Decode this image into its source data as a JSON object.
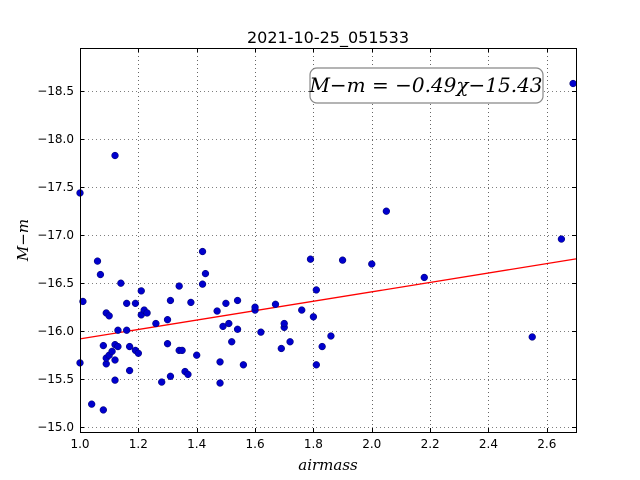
{
  "chart_data": {
    "type": "scatter",
    "title": "2021-10-25_051533",
    "xlabel": "airmass",
    "ylabel": "M−m",
    "xlim": [
      1.0,
      2.7
    ],
    "ylim": [
      -18.95,
      -14.95
    ],
    "y_inverted": true,
    "grid": true,
    "x_ticks": [
      1.0,
      1.2,
      1.4,
      1.6,
      1.8,
      2.0,
      2.2,
      2.4,
      2.6
    ],
    "x_tick_labels": [
      "1.0",
      "1.2",
      "1.4",
      "1.6",
      "1.8",
      "2.0",
      "2.2",
      "2.4",
      "2.6"
    ],
    "y_ticks": [
      -15.0,
      -15.5,
      -16.0,
      -16.5,
      -17.0,
      -17.5,
      -18.0,
      -18.5
    ],
    "y_tick_labels": [
      "−15.0",
      "−15.5",
      "−16.0",
      "−16.5",
      "−17.0",
      "−17.5",
      "−18.0",
      "−18.5"
    ],
    "annotation": "M−m = −0.49χ−15.43",
    "fit": {
      "slope": -0.49,
      "intercept": -15.43,
      "color": "#ff0000"
    },
    "point_color": "#0000cc",
    "points": [
      [
        1.0,
        -15.67
      ],
      [
        1.0,
        -17.44
      ],
      [
        1.01,
        -16.31
      ],
      [
        1.04,
        -15.24
      ],
      [
        1.06,
        -16.73
      ],
      [
        1.07,
        -16.59
      ],
      [
        1.08,
        -15.18
      ],
      [
        1.08,
        -15.85
      ],
      [
        1.09,
        -16.19
      ],
      [
        1.09,
        -15.66
      ],
      [
        1.09,
        -15.72
      ],
      [
        1.1,
        -15.75
      ],
      [
        1.1,
        -16.16
      ],
      [
        1.11,
        -15.79
      ],
      [
        1.12,
        -15.49
      ],
      [
        1.12,
        -15.7
      ],
      [
        1.12,
        -15.86
      ],
      [
        1.12,
        -17.83
      ],
      [
        1.13,
        -15.84
      ],
      [
        1.13,
        -16.01
      ],
      [
        1.14,
        -16.5
      ],
      [
        1.16,
        -16.29
      ],
      [
        1.16,
        -16.01
      ],
      [
        1.17,
        -15.84
      ],
      [
        1.17,
        -15.59
      ],
      [
        1.19,
        -15.8
      ],
      [
        1.19,
        -16.29
      ],
      [
        1.2,
        -15.77
      ],
      [
        1.21,
        -16.17
      ],
      [
        1.21,
        -16.42
      ],
      [
        1.22,
        -16.22
      ],
      [
        1.23,
        -16.19
      ],
      [
        1.26,
        -16.08
      ],
      [
        1.28,
        -15.47
      ],
      [
        1.3,
        -15.87
      ],
      [
        1.3,
        -16.12
      ],
      [
        1.31,
        -15.53
      ],
      [
        1.31,
        -16.32
      ],
      [
        1.34,
        -15.8
      ],
      [
        1.34,
        -16.47
      ],
      [
        1.35,
        -15.8
      ],
      [
        1.36,
        -15.58
      ],
      [
        1.37,
        -15.55
      ],
      [
        1.38,
        -16.3
      ],
      [
        1.4,
        -15.75
      ],
      [
        1.42,
        -16.49
      ],
      [
        1.42,
        -16.83
      ],
      [
        1.43,
        -16.6
      ],
      [
        1.47,
        -16.21
      ],
      [
        1.48,
        -15.68
      ],
      [
        1.48,
        -15.46
      ],
      [
        1.49,
        -16.05
      ],
      [
        1.5,
        -16.29
      ],
      [
        1.51,
        -16.08
      ],
      [
        1.52,
        -15.89
      ],
      [
        1.54,
        -16.32
      ],
      [
        1.54,
        -16.02
      ],
      [
        1.56,
        -15.65
      ],
      [
        1.6,
        -16.22
      ],
      [
        1.6,
        -16.25
      ],
      [
        1.62,
        -15.99
      ],
      [
        1.67,
        -16.28
      ],
      [
        1.69,
        -15.82
      ],
      [
        1.7,
        -16.04
      ],
      [
        1.7,
        -16.08
      ],
      [
        1.72,
        -15.89
      ],
      [
        1.76,
        -16.22
      ],
      [
        1.79,
        -16.75
      ],
      [
        1.8,
        -16.15
      ],
      [
        1.81,
        -15.65
      ],
      [
        1.81,
        -16.43
      ],
      [
        1.83,
        -15.84
      ],
      [
        1.86,
        -15.95
      ],
      [
        1.9,
        -16.74
      ],
      [
        2.0,
        -16.7
      ],
      [
        2.05,
        -17.25
      ],
      [
        2.18,
        -16.56
      ],
      [
        2.55,
        -15.94
      ],
      [
        2.65,
        -16.96
      ],
      [
        2.69,
        -18.58
      ]
    ]
  }
}
